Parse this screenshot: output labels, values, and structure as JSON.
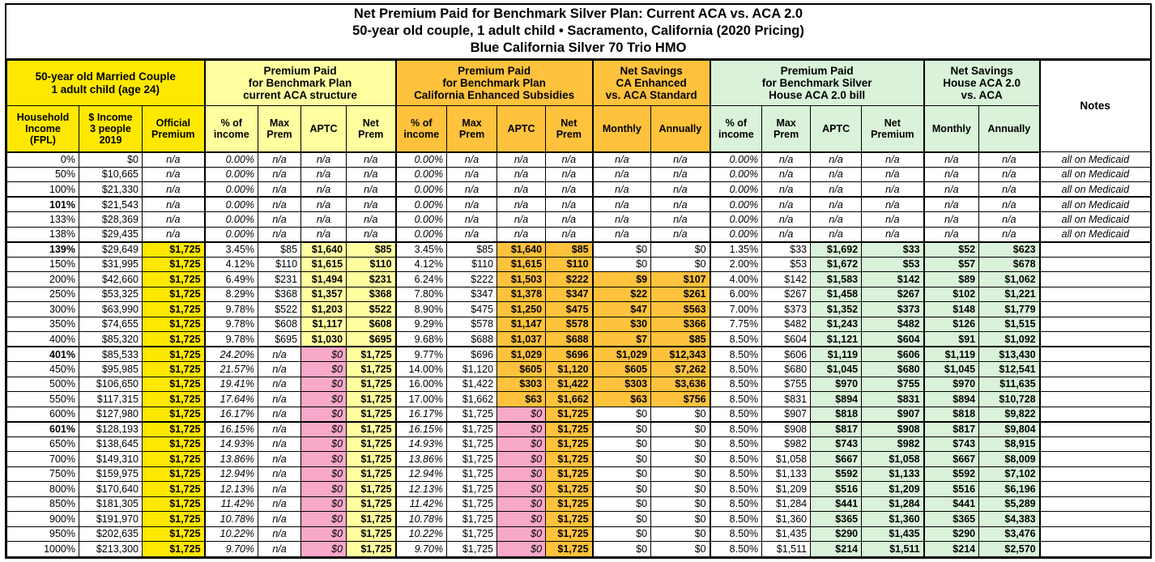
{
  "title_lines": [
    "Net Premium Paid for Benchmark Silver Plan: Current ACA vs. ACA 2.0",
    "50-year old couple, 1 adult child • Sacramento, California (2020 Pricing)",
    "Blue California Silver 70 Trio HMO"
  ],
  "colors": {
    "yellow": "#FFE800",
    "pale_yellow": "#FFFFA0",
    "orange": "#FFC23C",
    "green": "#D9F2D9",
    "pink": "#F8A8C8",
    "white": "#FFFFFF"
  },
  "chart_data": {
    "type": "table",
    "title": "Net Premium Paid for Benchmark Silver Plan: Current ACA vs. ACA 2.0",
    "subtitle": "50-year old couple, 1 adult child • Sacramento, California (2020 Pricing) — Blue California Silver 70 Trio HMO",
    "groups": [
      {
        "label": "50-year old Married Couple\n1 adult child (age 24)",
        "span": 3,
        "color": "yellow"
      },
      {
        "label": "Premium Paid\nfor Benchmark Plan\ncurrent ACA structure",
        "span": 4,
        "color": "pale_yellow"
      },
      {
        "label": "Premium Paid\nfor Benchmark Plan\nCalifornia Enhanced Subsidies",
        "span": 4,
        "color": "orange"
      },
      {
        "label": "Net Savings\nCA Enhanced\nvs. ACA Standard",
        "span": 2,
        "color": "orange"
      },
      {
        "label": "Premium Paid\nfor Benchmark Silver\nHouse ACA 2.0 bill",
        "span": 4,
        "color": "green"
      },
      {
        "label": "Net Savings\nHouse ACA 2.0\nvs. ACA",
        "span": 2,
        "color": "green"
      },
      {
        "label": "Notes",
        "span": 1,
        "color": "white",
        "rowspan2": true
      }
    ],
    "columns": [
      "Household\nIncome\n(FPL)",
      "$ Income\n3 people\n2019",
      "Official\nPremium",
      "% of\nincome",
      "Max\nPrem",
      "APTC",
      "Net\nPrem",
      "% of\nincome",
      "Max\nPrem",
      "APTC",
      "Net\nPrem",
      "Monthly",
      "Annually",
      "% of\nincome",
      "Max\nPrem",
      "APTC",
      "Net\nPremium",
      "Monthly",
      "Annually"
    ],
    "column_keys": [
      "fpl",
      "income",
      "official-premium",
      "aca-pct-income",
      "aca-max-prem",
      "aca-aptc",
      "aca-net-prem",
      "ca-pct-income",
      "ca-max-prem",
      "ca-aptc",
      "ca-net-prem",
      "ca-savings-monthly",
      "ca-savings-annually",
      "house-pct-income",
      "house-max-prem",
      "house-aptc",
      "house-net-premium",
      "house-savings-monthly",
      "house-savings-annually",
      "notes"
    ],
    "bold_fpl_rows": [
      "101%",
      "139%",
      "401%",
      "601%"
    ],
    "section_break_after": [
      "100%",
      "138%",
      "400%",
      "600%"
    ],
    "rows": [
      [
        "0%",
        "$0",
        "n/a",
        "0.00%",
        "n/a",
        "n/a",
        "n/a",
        "0.00%",
        "n/a",
        "n/a",
        "n/a",
        "n/a",
        "n/a",
        "0.00%",
        "n/a",
        "n/a",
        "n/a",
        "n/a",
        "n/a",
        "all on Medicaid"
      ],
      [
        "50%",
        "$10,665",
        "n/a",
        "0.00%",
        "n/a",
        "n/a",
        "n/a",
        "0.00%",
        "n/a",
        "n/a",
        "n/a",
        "n/a",
        "n/a",
        "0.00%",
        "n/a",
        "n/a",
        "n/a",
        "n/a",
        "n/a",
        "all on Medicaid"
      ],
      [
        "100%",
        "$21,330",
        "n/a",
        "0.00%",
        "n/a",
        "n/a",
        "n/a",
        "0.00%",
        "n/a",
        "n/a",
        "n/a",
        "n/a",
        "n/a",
        "0.00%",
        "n/a",
        "n/a",
        "n/a",
        "n/a",
        "n/a",
        "all on Medicaid"
      ],
      [
        "101%",
        "$21,543",
        "n/a",
        "0.00%",
        "n/a",
        "n/a",
        "n/a",
        "0.00%",
        "n/a",
        "n/a",
        "n/a",
        "n/a",
        "n/a",
        "0.00%",
        "n/a",
        "n/a",
        "n/a",
        "n/a",
        "n/a",
        "all on Medicaid"
      ],
      [
        "133%",
        "$28,369",
        "n/a",
        "0.00%",
        "n/a",
        "n/a",
        "n/a",
        "0.00%",
        "n/a",
        "n/a",
        "n/a",
        "n/a",
        "n/a",
        "0.00%",
        "n/a",
        "n/a",
        "n/a",
        "n/a",
        "n/a",
        "all on Medicaid"
      ],
      [
        "138%",
        "$29,435",
        "n/a",
        "0.00%",
        "n/a",
        "n/a",
        "n/a",
        "0.00%",
        "n/a",
        "n/a",
        "n/a",
        "n/a",
        "n/a",
        "0.00%",
        "n/a",
        "n/a",
        "n/a",
        "n/a",
        "n/a",
        "all on Medicaid"
      ],
      [
        "139%",
        "$29,649",
        "$1,725",
        "3.45%",
        "$85",
        "$1,640",
        "$85",
        "3.45%",
        "$85",
        "$1,640",
        "$85",
        "$0",
        "$0",
        "1.35%",
        "$33",
        "$1,692",
        "$33",
        "$52",
        "$623",
        ""
      ],
      [
        "150%",
        "$31,995",
        "$1,725",
        "4.12%",
        "$110",
        "$1,615",
        "$110",
        "4.12%",
        "$110",
        "$1,615",
        "$110",
        "$0",
        "$0",
        "2.00%",
        "$53",
        "$1,672",
        "$53",
        "$57",
        "$678",
        ""
      ],
      [
        "200%",
        "$42,660",
        "$1,725",
        "6.49%",
        "$231",
        "$1,494",
        "$231",
        "6.24%",
        "$222",
        "$1,503",
        "$222",
        "$9",
        "$107",
        "4.00%",
        "$142",
        "$1,583",
        "$142",
        "$89",
        "$1,062",
        ""
      ],
      [
        "250%",
        "$53,325",
        "$1,725",
        "8.29%",
        "$368",
        "$1,357",
        "$368",
        "7.80%",
        "$347",
        "$1,378",
        "$347",
        "$22",
        "$261",
        "6.00%",
        "$267",
        "$1,458",
        "$267",
        "$102",
        "$1,221",
        ""
      ],
      [
        "300%",
        "$63,990",
        "$1,725",
        "9.78%",
        "$522",
        "$1,203",
        "$522",
        "8.90%",
        "$475",
        "$1,250",
        "$475",
        "$47",
        "$563",
        "7.00%",
        "$373",
        "$1,352",
        "$373",
        "$148",
        "$1,779",
        ""
      ],
      [
        "350%",
        "$74,655",
        "$1,725",
        "9.78%",
        "$608",
        "$1,117",
        "$608",
        "9.29%",
        "$578",
        "$1,147",
        "$578",
        "$30",
        "$366",
        "7.75%",
        "$482",
        "$1,243",
        "$482",
        "$126",
        "$1,515",
        ""
      ],
      [
        "400%",
        "$85,320",
        "$1,725",
        "9.78%",
        "$695",
        "$1,030",
        "$695",
        "9.68%",
        "$688",
        "$1,037",
        "$688",
        "$7",
        "$85",
        "8.50%",
        "$604",
        "$1,121",
        "$604",
        "$91",
        "$1,092",
        ""
      ],
      [
        "401%",
        "$85,533",
        "$1,725",
        "24.20%",
        "n/a",
        "$0",
        "$1,725",
        "9.77%",
        "$696",
        "$1,029",
        "$696",
        "$1,029",
        "$12,343",
        "8.50%",
        "$606",
        "$1,119",
        "$606",
        "$1,119",
        "$13,430",
        ""
      ],
      [
        "450%",
        "$95,985",
        "$1,725",
        "21.57%",
        "n/a",
        "$0",
        "$1,725",
        "14.00%",
        "$1,120",
        "$605",
        "$1,120",
        "$605",
        "$7,262",
        "8.50%",
        "$680",
        "$1,045",
        "$680",
        "$1,045",
        "$12,541",
        ""
      ],
      [
        "500%",
        "$106,650",
        "$1,725",
        "19.41%",
        "n/a",
        "$0",
        "$1,725",
        "16.00%",
        "$1,422",
        "$303",
        "$1,422",
        "$303",
        "$3,636",
        "8.50%",
        "$755",
        "$970",
        "$755",
        "$970",
        "$11,635",
        ""
      ],
      [
        "550%",
        "$117,315",
        "$1,725",
        "17.64%",
        "n/a",
        "$0",
        "$1,725",
        "17.00%",
        "$1,662",
        "$63",
        "$1,662",
        "$63",
        "$756",
        "8.50%",
        "$831",
        "$894",
        "$831",
        "$894",
        "$10,728",
        ""
      ],
      [
        "600%",
        "$127,980",
        "$1,725",
        "16.17%",
        "n/a",
        "$0",
        "$1,725",
        "16.17%",
        "$1,725",
        "$0",
        "$1,725",
        "$0",
        "$0",
        "8.50%",
        "$907",
        "$818",
        "$907",
        "$818",
        "$9,822",
        ""
      ],
      [
        "601%",
        "$128,193",
        "$1,725",
        "16.15%",
        "n/a",
        "$0",
        "$1,725",
        "16.15%",
        "$1,725",
        "$0",
        "$1,725",
        "$0",
        "$0",
        "8.50%",
        "$908",
        "$817",
        "$908",
        "$817",
        "$9,804",
        ""
      ],
      [
        "650%",
        "$138,645",
        "$1,725",
        "14.93%",
        "n/a",
        "$0",
        "$1,725",
        "14.93%",
        "$1,725",
        "$0",
        "$1,725",
        "$0",
        "$0",
        "8.50%",
        "$982",
        "$743",
        "$982",
        "$743",
        "$8,915",
        ""
      ],
      [
        "700%",
        "$149,310",
        "$1,725",
        "13.86%",
        "n/a",
        "$0",
        "$1,725",
        "13.86%",
        "$1,725",
        "$0",
        "$1,725",
        "$0",
        "$0",
        "8.50%",
        "$1,058",
        "$667",
        "$1,058",
        "$667",
        "$8,009",
        ""
      ],
      [
        "750%",
        "$159,975",
        "$1,725",
        "12.94%",
        "n/a",
        "$0",
        "$1,725",
        "12.94%",
        "$1,725",
        "$0",
        "$1,725",
        "$0",
        "$0",
        "8.50%",
        "$1,133",
        "$592",
        "$1,133",
        "$592",
        "$7,102",
        ""
      ],
      [
        "800%",
        "$170,640",
        "$1,725",
        "12.13%",
        "n/a",
        "$0",
        "$1,725",
        "12.13%",
        "$1,725",
        "$0",
        "$1,725",
        "$0",
        "$0",
        "8.50%",
        "$1,209",
        "$516",
        "$1,209",
        "$516",
        "$6,196",
        ""
      ],
      [
        "850%",
        "$181,305",
        "$1,725",
        "11.42%",
        "n/a",
        "$0",
        "$1,725",
        "11.42%",
        "$1,725",
        "$0",
        "$1,725",
        "$0",
        "$0",
        "8.50%",
        "$1,284",
        "$441",
        "$1,284",
        "$441",
        "$5,289",
        ""
      ],
      [
        "900%",
        "$191,970",
        "$1,725",
        "10.78%",
        "n/a",
        "$0",
        "$1,725",
        "10.78%",
        "$1,725",
        "$0",
        "$1,725",
        "$0",
        "$0",
        "8.50%",
        "$1,360",
        "$365",
        "$1,360",
        "$365",
        "$4,383",
        ""
      ],
      [
        "950%",
        "$202,635",
        "$1,725",
        "10.22%",
        "n/a",
        "$0",
        "$1,725",
        "10.22%",
        "$1,725",
        "$0",
        "$1,725",
        "$0",
        "$0",
        "8.50%",
        "$1,435",
        "$290",
        "$1,435",
        "$290",
        "$3,476",
        ""
      ],
      [
        "1000%",
        "$213,300",
        "$1,725",
        "9.70%",
        "n/a",
        "$0",
        "$1,725",
        "9.70%",
        "$1,725",
        "$0",
        "$1,725",
        "$0",
        "$0",
        "8.50%",
        "$1,511",
        "$214",
        "$1,511",
        "$214",
        "$2,570",
        ""
      ]
    ]
  }
}
